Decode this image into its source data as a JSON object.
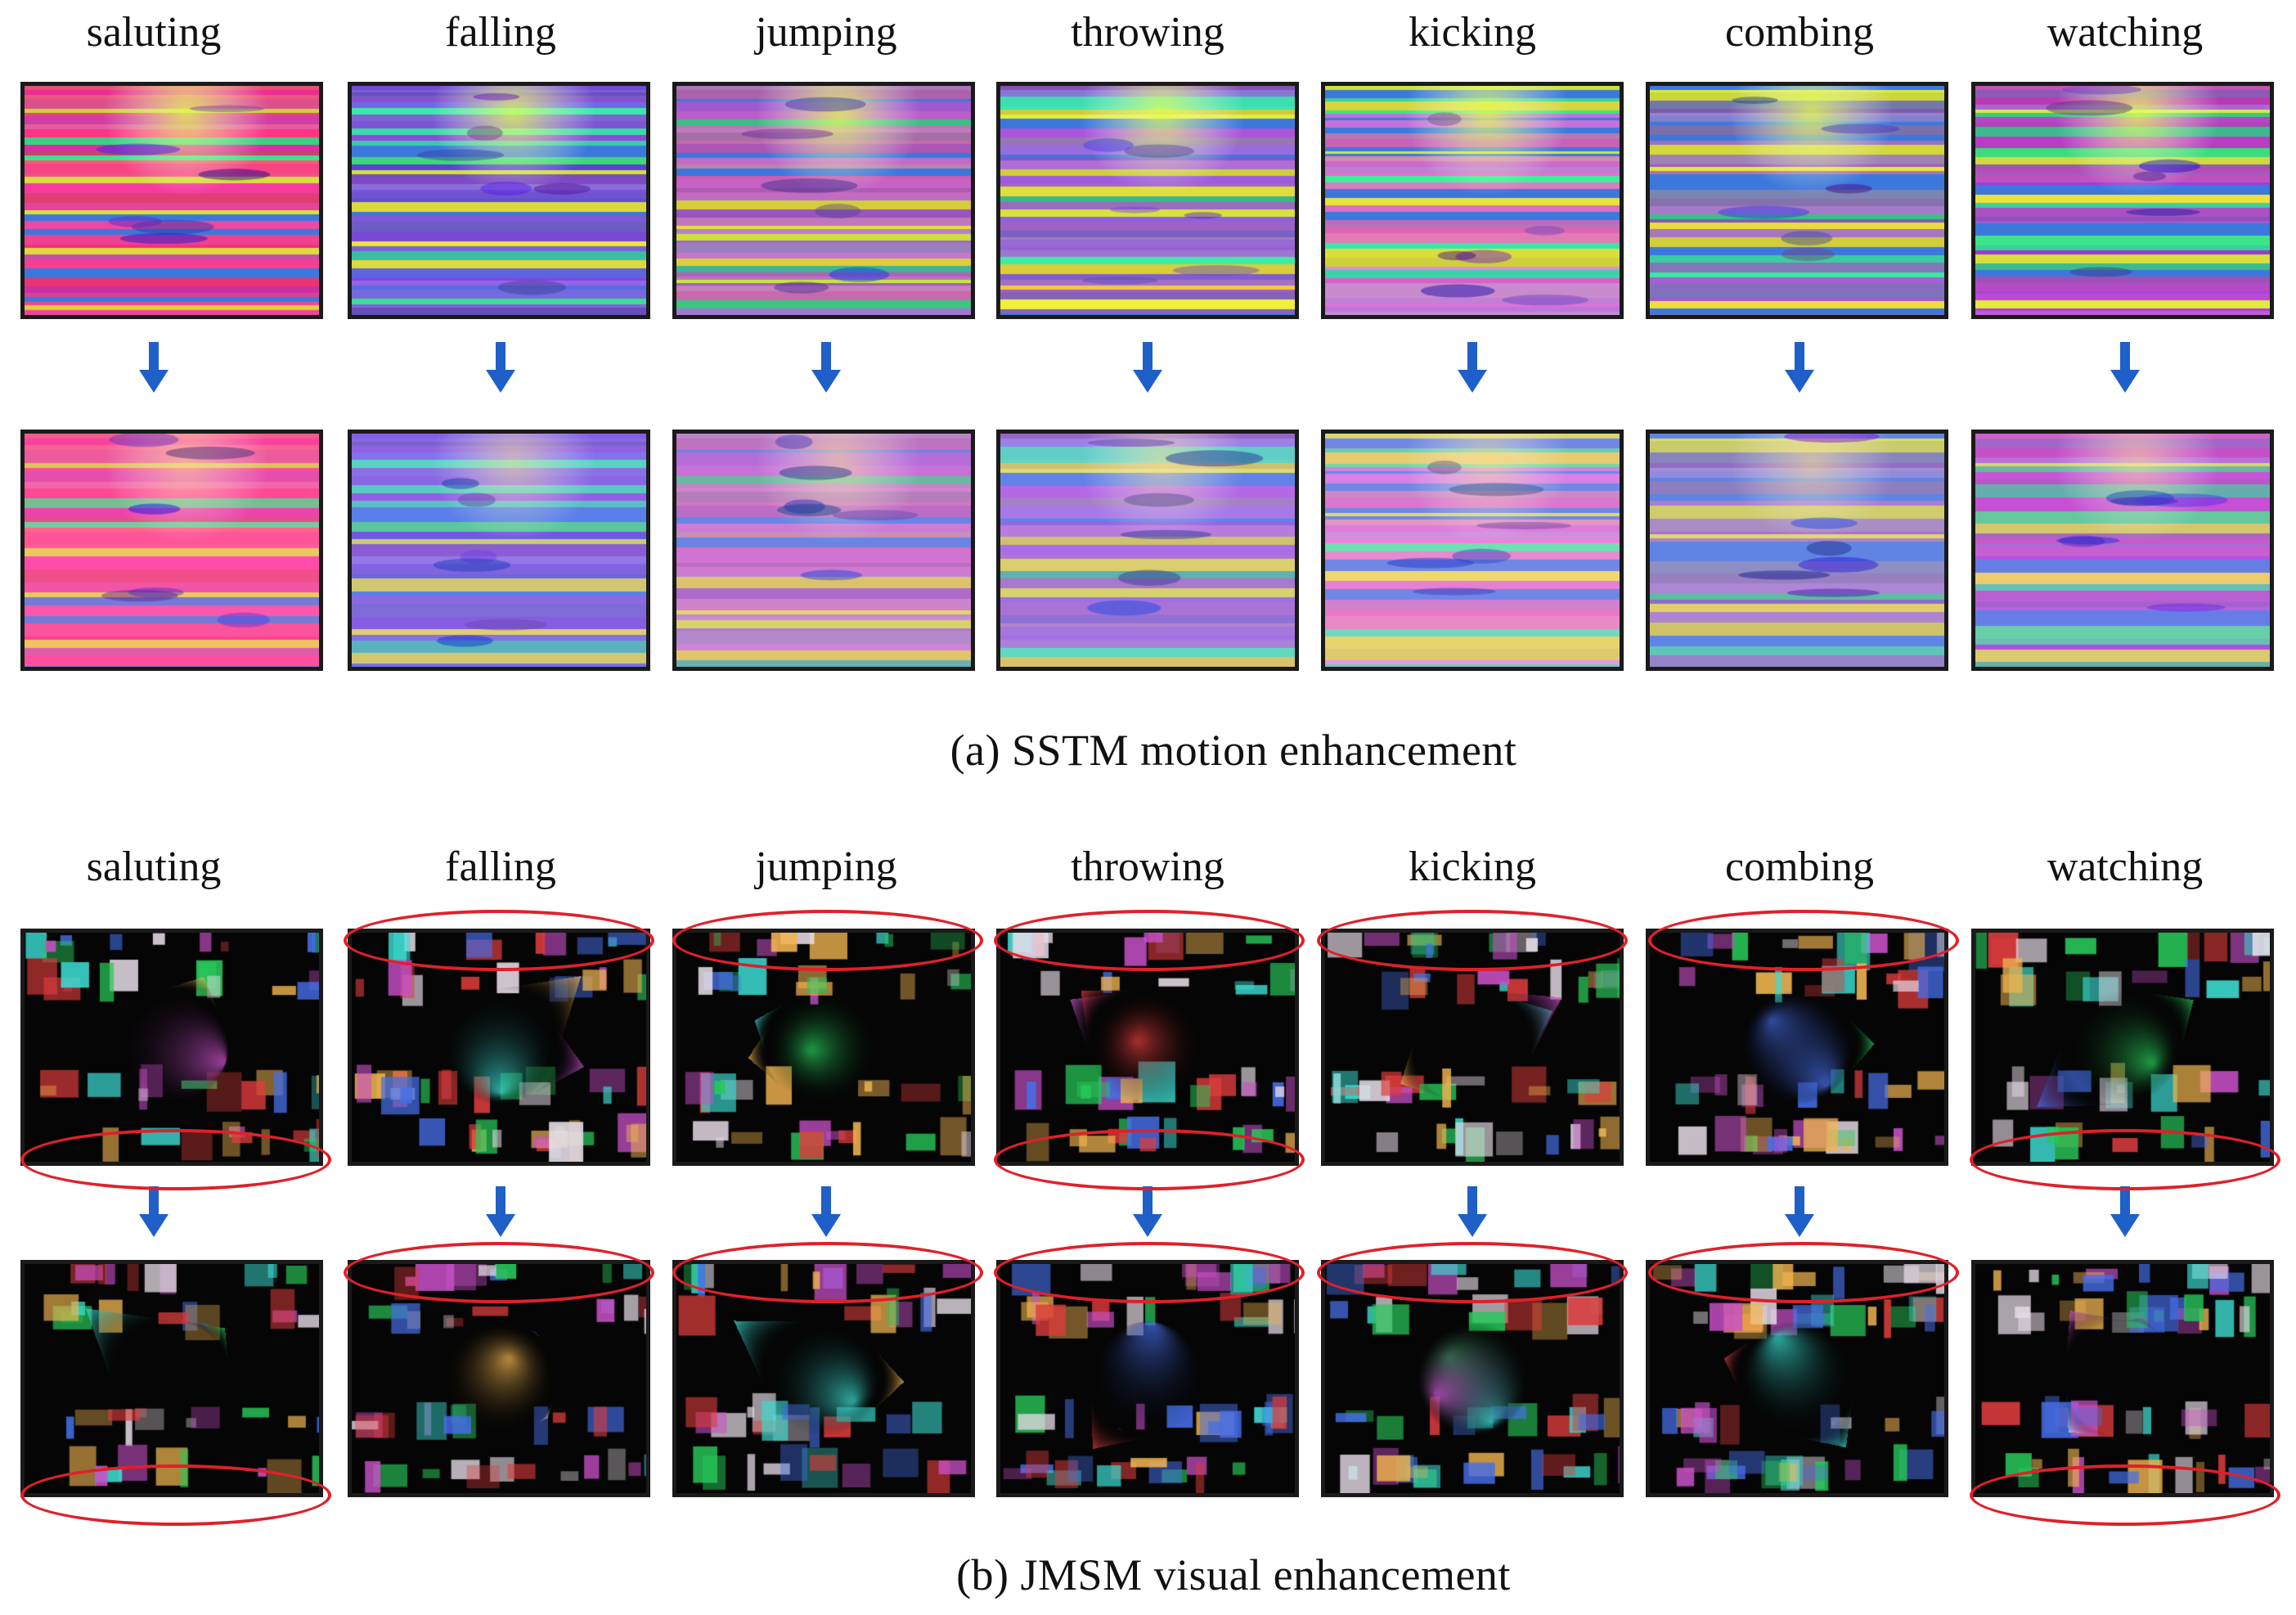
{
  "actions": [
    "saluting",
    "falling",
    "jumping",
    "throwing",
    "kicking",
    "combing",
    "watching"
  ],
  "panels": [
    {
      "caption": "(a)  SSTM motion enhancement",
      "style": "motion"
    },
    {
      "caption": "(b)  JMSM visual enhancement",
      "style": "visual"
    }
  ],
  "colors": {
    "arrow": "#1f5fc8",
    "highlight_ellipse": "#e0202a",
    "tile_border": "#1a1a1a"
  },
  "icons": {
    "transition": "down-arrow-icon",
    "highlight": "red-ellipse-highlight"
  }
}
